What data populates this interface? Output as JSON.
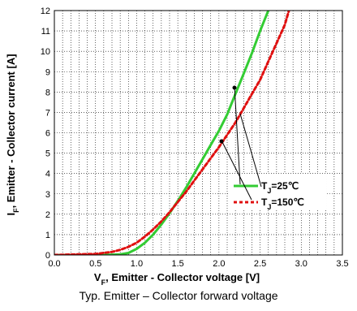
{
  "caption": "Typ. Emitter – Collector forward voltage",
  "chart_data": {
    "type": "line",
    "xlabel_main": "V",
    "xlabel_sub": "F",
    "xlabel_rest": ", Emitter - Collector voltage [V]",
    "ylabel_main": "I",
    "ylabel_sub": "F",
    "ylabel_rest": ", Emitter - Collector current [A]",
    "xlim": [
      0,
      3.5
    ],
    "ylim": [
      0,
      12
    ],
    "xticks": [
      0.0,
      0.5,
      1.0,
      1.5,
      2.0,
      2.5,
      3.0,
      3.5
    ],
    "xtick_labels": [
      "0.0",
      "0.5",
      "1.0",
      "1.5",
      "2.0",
      "2.5",
      "3.0",
      "3.5"
    ],
    "yticks": [
      0,
      1,
      2,
      3,
      4,
      5,
      6,
      7,
      8,
      9,
      10,
      11,
      12
    ],
    "ytick_labels": [
      "0",
      "1",
      "2",
      "3",
      "4",
      "5",
      "6",
      "7",
      "8",
      "9",
      "10",
      "11",
      "12"
    ],
    "grid": true,
    "legend_position": "lower-right",
    "series": [
      {
        "name_main": "T",
        "name_sub": "J",
        "name_rest": "=25℃",
        "color": "#33cc33",
        "style": "solid",
        "points": [
          [
            0.0,
            0.0
          ],
          [
            0.6,
            0.0
          ],
          [
            0.8,
            0.03
          ],
          [
            0.9,
            0.1
          ],
          [
            1.0,
            0.3
          ],
          [
            1.1,
            0.6
          ],
          [
            1.2,
            1.0
          ],
          [
            1.3,
            1.5
          ],
          [
            1.4,
            2.05
          ],
          [
            1.5,
            2.65
          ],
          [
            1.6,
            3.3
          ],
          [
            1.7,
            4.0
          ],
          [
            1.8,
            4.7
          ],
          [
            1.9,
            5.4
          ],
          [
            2.0,
            6.1
          ],
          [
            2.1,
            6.9
          ],
          [
            2.2,
            7.9
          ],
          [
            2.3,
            8.9
          ],
          [
            2.4,
            9.9
          ],
          [
            2.5,
            11.0
          ],
          [
            2.6,
            12.0
          ]
        ]
      },
      {
        "name_main": "T",
        "name_sub": "J",
        "name_rest": "=150℃",
        "color": "#e01010",
        "style": "dashed",
        "points": [
          [
            0.0,
            0.0
          ],
          [
            0.5,
            0.05
          ],
          [
            0.7,
            0.15
          ],
          [
            0.8,
            0.25
          ],
          [
            0.9,
            0.4
          ],
          [
            1.0,
            0.6
          ],
          [
            1.1,
            0.9
          ],
          [
            1.2,
            1.25
          ],
          [
            1.3,
            1.65
          ],
          [
            1.4,
            2.1
          ],
          [
            1.5,
            2.6
          ],
          [
            1.6,
            3.1
          ],
          [
            1.7,
            3.65
          ],
          [
            1.8,
            4.2
          ],
          [
            1.9,
            4.75
          ],
          [
            2.0,
            5.3
          ],
          [
            2.1,
            5.9
          ],
          [
            2.2,
            6.5
          ],
          [
            2.3,
            7.2
          ],
          [
            2.4,
            7.9
          ],
          [
            2.5,
            8.6
          ],
          [
            2.6,
            9.5
          ],
          [
            2.7,
            10.4
          ],
          [
            2.8,
            11.3
          ],
          [
            2.85,
            12.0
          ]
        ]
      }
    ]
  }
}
